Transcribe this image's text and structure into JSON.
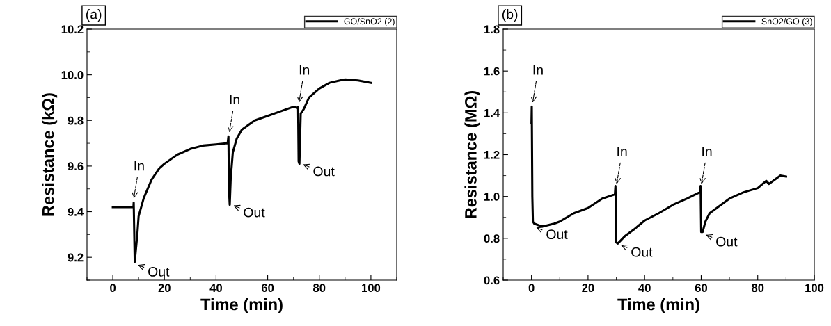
{
  "chart_data": [
    {
      "type": "line",
      "xlabel": "Time (min)",
      "ylabel": "Resistance (kΩ)",
      "xlim": [
        -10,
        110
      ],
      "xticks": [
        0,
        20,
        40,
        60,
        80,
        100
      ],
      "ylim": [
        9.1,
        10.2
      ],
      "yticks": [
        9.2,
        9.4,
        9.6,
        9.8,
        {
          "value": 10,
          "label": "10.0"
        },
        10.2
      ],
      "grid": false,
      "legend": "top right",
      "series": [
        {
          "name": "GO/SnO2 (2)",
          "color": "#000000",
          "x": [
            0,
            8,
            8.1,
            8.5,
            9.5,
            10,
            12,
            15,
            18,
            20,
            25,
            30,
            35,
            40,
            44.5,
            44.8,
            45,
            45.3,
            45.7,
            46.5,
            48,
            50,
            55,
            60,
            65,
            70,
            71.5,
            71.8,
            72,
            72.3,
            72.8,
            74,
            76,
            80,
            84,
            88,
            90,
            95,
            100
          ],
          "values": [
            9.42,
            9.42,
            9.44,
            9.18,
            9.3,
            9.38,
            9.46,
            9.54,
            9.59,
            9.61,
            9.65,
            9.675,
            9.69,
            9.695,
            9.7,
            9.73,
            9.5,
            9.43,
            9.55,
            9.66,
            9.72,
            9.76,
            9.8,
            9.82,
            9.84,
            9.86,
            9.855,
            9.86,
            9.62,
            9.61,
            9.83,
            9.85,
            9.9,
            9.94,
            9.965,
            9.975,
            9.98,
            9.975,
            9.965
          ]
        }
      ],
      "annotations": [
        "(a)",
        {
          "text": "In",
          "x": 8,
          "y": 9.45
        },
        {
          "text": "Out",
          "x": 9,
          "y": 9.17
        },
        {
          "text": "In",
          "x": 45,
          "y": 9.74
        },
        {
          "text": "Out",
          "x": 46,
          "y": 9.43
        },
        {
          "text": "In",
          "x": 72,
          "y": 9.87
        },
        {
          "text": "Out",
          "x": 73,
          "y": 9.61
        }
      ]
    },
    {
      "type": "line",
      "xlabel": "Time (min)",
      "ylabel": "Resistance (MΩ)",
      "xlim": [
        -10,
        100
      ],
      "xticks": [
        0,
        20,
        40,
        60,
        80,
        100
      ],
      "ylim": [
        0.6,
        1.8
      ],
      "yticks": [
        0.6,
        0.8,
        {
          "value": 1,
          "label": "1.0"
        },
        1.2,
        1.4,
        1.6,
        1.8
      ],
      "grid": false,
      "legend": "top right",
      "series": [
        {
          "name": "SnO2/GO (3)",
          "color": "#000000",
          "x": [
            0,
            0.1,
            0.3,
            0.5,
            1,
            3,
            5,
            8,
            10,
            15,
            20,
            25,
            29.5,
            29.7,
            30,
            30.5,
            33,
            36,
            40,
            45,
            50,
            55,
            59.5,
            59.8,
            60,
            60.5,
            61.5,
            63,
            67,
            70,
            75,
            80,
            83,
            84,
            86,
            88,
            90
          ],
          "values": [
            1.35,
            1.43,
            1.0,
            0.88,
            0.87,
            0.86,
            0.86,
            0.87,
            0.88,
            0.92,
            0.945,
            0.99,
            1.01,
            1.05,
            0.78,
            0.775,
            0.81,
            0.84,
            0.885,
            0.92,
            0.96,
            0.99,
            1.02,
            1.05,
            0.83,
            0.83,
            0.88,
            0.92,
            0.96,
            0.99,
            1.02,
            1.04,
            1.075,
            1.06,
            1.08,
            1.1,
            1.095
          ]
        }
      ],
      "annotations": [
        "(b)",
        {
          "text": "In",
          "x": 0.3,
          "y": 1.44
        },
        {
          "text": "Out",
          "x": 1,
          "y": 0.855
        },
        {
          "text": "In",
          "x": 30,
          "y": 1.05
        },
        {
          "text": "Out",
          "x": 31,
          "y": 0.77
        },
        {
          "text": "In",
          "x": 60,
          "y": 1.05
        },
        {
          "text": "Out",
          "x": 61,
          "y": 0.82
        }
      ]
    }
  ]
}
